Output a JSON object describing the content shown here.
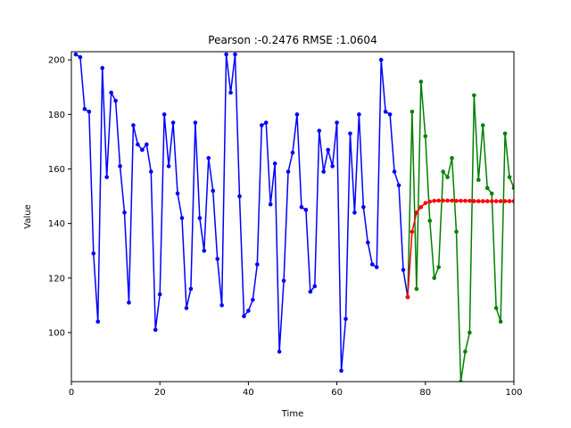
{
  "chart_data": {
    "type": "line",
    "title": "Pearson :-0.2476  RMSE :1.0604",
    "xlabel": "Time",
    "ylabel": "Value",
    "xlim": [
      0,
      100
    ],
    "ylim": [
      82,
      203
    ],
    "xticks": [
      0,
      20,
      40,
      60,
      80,
      100
    ],
    "yticks": [
      100,
      120,
      140,
      160,
      180,
      200
    ],
    "grid": false,
    "series": [
      {
        "color": "#0000ff",
        "x": [
          1,
          2,
          3,
          4,
          5,
          6,
          7,
          8,
          9,
          10,
          11,
          12,
          13,
          14,
          15,
          16,
          17,
          18,
          19,
          20,
          21,
          22,
          23,
          24,
          25,
          26,
          27,
          28,
          29,
          30,
          31,
          32,
          33,
          34,
          35,
          36,
          37,
          38,
          39,
          40,
          41,
          42,
          43,
          44,
          45,
          46,
          47,
          48,
          49,
          50,
          51,
          52,
          53,
          54,
          55,
          56,
          57,
          58,
          59,
          60,
          61,
          62,
          63,
          64,
          65,
          66,
          67,
          68,
          69,
          70,
          71,
          72,
          73,
          74,
          75,
          76
        ],
        "y": [
          202,
          201,
          182,
          181,
          129,
          104,
          197,
          157,
          188,
          185,
          161,
          144,
          111,
          176,
          169,
          167,
          169,
          159,
          101,
          114,
          180,
          161,
          177,
          151,
          142,
          109,
          116,
          177,
          142,
          130,
          164,
          152,
          127,
          110,
          202,
          188,
          202,
          150,
          106,
          108,
          112,
          125,
          176,
          177,
          147,
          162,
          93,
          119,
          159,
          166,
          180,
          146,
          145,
          115,
          117,
          174,
          159,
          167,
          161,
          177,
          86,
          105,
          173,
          144,
          180,
          146,
          133,
          125,
          124,
          200,
          181,
          180,
          159,
          154,
          123,
          113
        ]
      },
      {
        "color": "#008000",
        "x": [
          76,
          77,
          78,
          79,
          80,
          81,
          82,
          83,
          84,
          85,
          86,
          87,
          88,
          89,
          90,
          91,
          92,
          93,
          94,
          95,
          96,
          97,
          98,
          99,
          100
        ],
        "y": [
          113,
          181,
          116,
          192,
          172,
          141,
          120,
          124,
          159,
          157,
          164,
          137,
          82,
          93,
          100,
          187,
          156,
          176,
          153,
          151,
          109,
          104,
          173,
          157,
          153
        ]
      },
      {
        "color": "#ff0000",
        "x": [
          76,
          77,
          78,
          79,
          80,
          81,
          82,
          83,
          84,
          85,
          86,
          87,
          88,
          89,
          90,
          91,
          92,
          93,
          94,
          95,
          96,
          97,
          98,
          99,
          100
        ],
        "y": [
          113,
          137,
          144,
          146,
          147.5,
          148,
          148.3,
          148.4,
          148.4,
          148.4,
          148.4,
          148.3,
          148.3,
          148.3,
          148.3,
          148.2,
          148.2,
          148.2,
          148.2,
          148.2,
          148.2,
          148.2,
          148.2,
          148.2,
          148.2
        ]
      }
    ]
  }
}
